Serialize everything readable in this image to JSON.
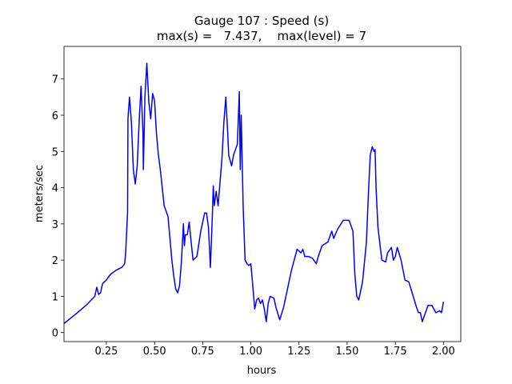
{
  "chart_data": {
    "type": "line",
    "title": "Gauge 107 : Speed (s)",
    "subtitle": "max(s) =   7.437,    max(level) = 7",
    "x_label": "hours",
    "y_label": "meters/sec",
    "color": "#0000ff",
    "x": [
      0.03,
      0.1,
      0.15,
      0.19,
      0.2,
      0.21,
      0.22,
      0.23,
      0.25,
      0.27,
      0.3,
      0.33,
      0.345,
      0.35,
      0.36,
      0.362,
      0.37,
      0.38,
      0.39,
      0.4,
      0.41,
      0.42,
      0.43,
      0.44,
      0.442,
      0.45,
      0.46,
      0.47,
      0.48,
      0.49,
      0.5,
      0.51,
      0.52,
      0.53,
      0.55,
      0.57,
      0.58,
      0.59,
      0.6,
      0.61,
      0.62,
      0.63,
      0.64,
      0.65,
      0.655,
      0.66,
      0.67,
      0.68,
      0.69,
      0.7,
      0.72,
      0.74,
      0.76,
      0.77,
      0.78,
      0.79,
      0.8,
      0.805,
      0.81,
      0.82,
      0.83,
      0.85,
      0.86,
      0.87,
      0.88,
      0.885,
      0.9,
      0.91,
      0.93,
      0.94,
      0.945,
      0.95,
      0.96,
      0.97,
      0.98,
      0.99,
      1.0,
      1.01,
      1.02,
      1.03,
      1.04,
      1.05,
      1.06,
      1.07,
      1.08,
      1.09,
      1.1,
      1.12,
      1.13,
      1.15,
      1.17,
      1.19,
      1.21,
      1.23,
      1.24,
      1.26,
      1.27,
      1.28,
      1.3,
      1.32,
      1.34,
      1.35,
      1.37,
      1.4,
      1.42,
      1.43,
      1.45,
      1.48,
      1.51,
      1.53,
      1.54,
      1.55,
      1.56,
      1.58,
      1.6,
      1.61,
      1.62,
      1.63,
      1.64,
      1.645,
      1.65,
      1.66,
      1.68,
      1.7,
      1.71,
      1.73,
      1.74,
      1.75,
      1.76,
      1.78,
      1.8,
      1.82,
      1.84,
      1.86,
      1.87,
      1.88,
      1.89,
      1.9,
      1.92,
      1.94,
      1.96,
      1.98,
      1.99,
      2.0
    ],
    "values": [
      0.25,
      0.55,
      0.78,
      1.0,
      1.25,
      1.05,
      1.1,
      1.35,
      1.45,
      1.6,
      1.72,
      1.8,
      1.9,
      2.2,
      3.3,
      5.9,
      6.5,
      5.8,
      4.5,
      4.1,
      4.6,
      5.8,
      6.8,
      5.5,
      4.5,
      6.5,
      7.437,
      6.4,
      5.9,
      6.6,
      6.4,
      5.5,
      4.9,
      4.5,
      3.5,
      3.2,
      2.6,
      2.0,
      1.55,
      1.2,
      1.1,
      1.3,
      2.0,
      3.0,
      2.4,
      2.7,
      2.7,
      3.05,
      2.5,
      2.0,
      2.1,
      2.8,
      3.3,
      3.3,
      2.9,
      1.8,
      3.2,
      4.05,
      3.5,
      3.9,
      3.5,
      4.8,
      5.8,
      6.5,
      5.5,
      4.9,
      4.6,
      4.9,
      5.2,
      6.65,
      4.5,
      6.0,
      3.5,
      2.0,
      1.9,
      1.85,
      1.9,
      1.3,
      0.65,
      0.9,
      0.95,
      0.8,
      0.9,
      0.65,
      0.3,
      0.8,
      1.0,
      0.95,
      0.7,
      0.35,
      0.7,
      1.2,
      1.7,
      2.1,
      2.3,
      2.2,
      2.3,
      2.1,
      2.1,
      2.05,
      1.9,
      2.1,
      2.4,
      2.5,
      2.8,
      2.6,
      2.85,
      3.1,
      3.1,
      2.8,
      1.6,
      1.0,
      0.9,
      1.4,
      2.5,
      3.8,
      4.9,
      5.13,
      5.0,
      5.05,
      4.0,
      2.9,
      2.0,
      1.95,
      2.2,
      2.35,
      2.0,
      2.1,
      2.35,
      2.0,
      1.45,
      1.4,
      1.05,
      0.7,
      0.55,
      0.55,
      0.3,
      0.45,
      0.75,
      0.75,
      0.55,
      0.6,
      0.55,
      0.85
    ],
    "xlim": [
      0.03,
      2.09
    ],
    "ylim": [
      -0.25,
      7.9
    ],
    "xticks": [
      0.25,
      {
        "value": 0.5,
        "label": "0.50"
      },
      0.75,
      {
        "value": 1.0,
        "label": "1.00"
      },
      1.25,
      {
        "value": 1.5,
        "label": "1.50"
      },
      1.75,
      {
        "value": 2.0,
        "label": "2.00"
      }
    ],
    "yticks": [
      0,
      1,
      2,
      3,
      4,
      5,
      6,
      7
    ]
  }
}
